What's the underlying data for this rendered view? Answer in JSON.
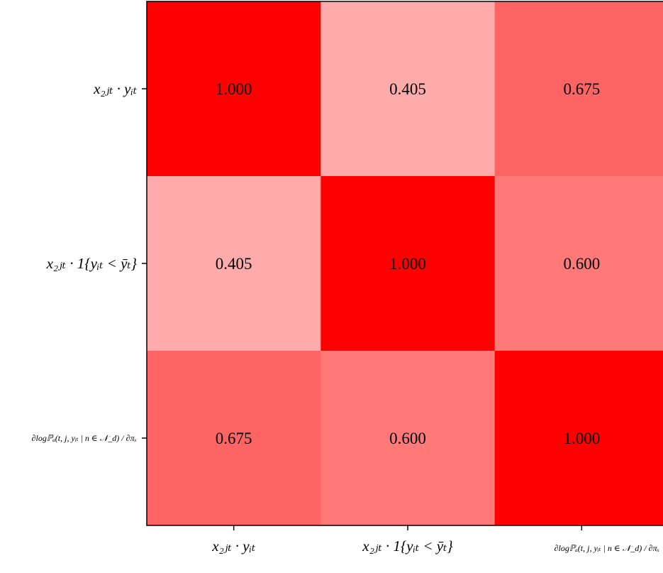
{
  "chart_data": {
    "type": "heatmap",
    "title": "",
    "xlabel": "",
    "ylabel": "",
    "rows": [
      "x₂ⱼₜ · yᵢₜ",
      "x₂ⱼₜ · 1{yᵢₜ < ȳₜ}",
      "∂logℙₐ(t, j, yᵢₜ | n ∈ 𝒩_d) / ∂πₓ"
    ],
    "columns": [
      "x₂ⱼₜ · yᵢₜ",
      "x₂ⱼₜ · 1{yᵢₜ < ȳₜ}",
      "∂logℙₐ(t, j, yᵢₜ | n ∈ 𝒩_d) / ∂πₓ"
    ],
    "values": [
      [
        1.0,
        0.405,
        0.675
      ],
      [
        0.405,
        1.0,
        0.6
      ],
      [
        0.675,
        0.6,
        1.0
      ]
    ],
    "value_labels": [
      [
        "1.000",
        "0.405",
        "0.675"
      ],
      [
        "0.405",
        "1.000",
        "0.600"
      ],
      [
        "0.675",
        "0.600",
        "1.000"
      ]
    ],
    "value_range": [
      0,
      1
    ],
    "colors": {
      "high": "#ff0000",
      "low": "#ffffff",
      "axis": "#000000"
    },
    "grid": false,
    "legend": "none"
  }
}
